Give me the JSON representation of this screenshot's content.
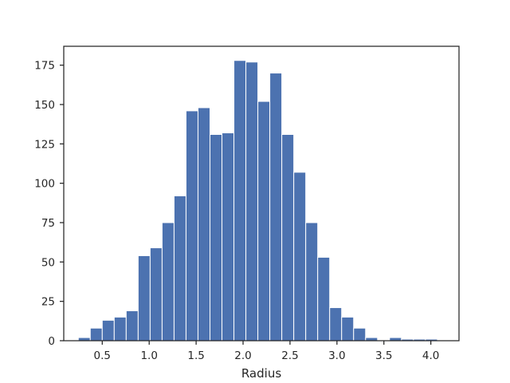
{
  "chart_data": {
    "type": "bar",
    "subtype": "histogram",
    "title": "",
    "xlabel": "Radius",
    "ylabel": "",
    "xlim": [
      0.09,
      4.3
    ],
    "ylim": [
      0,
      187
    ],
    "grid": false,
    "bar_color": "#4c72b0",
    "bar_edge_color": "#ffffff",
    "x_ticks": [
      {
        "value": 0.5,
        "label": "0.5"
      },
      {
        "value": 1.0,
        "label": "1.0"
      },
      {
        "value": 1.5,
        "label": "1.5"
      },
      {
        "value": 2.0,
        "label": "2.0"
      },
      {
        "value": 2.5,
        "label": "2.5"
      },
      {
        "value": 3.0,
        "label": "3.0"
      },
      {
        "value": 3.5,
        "label": "3.5"
      },
      {
        "value": 4.0,
        "label": "4.0"
      }
    ],
    "y_ticks": [
      {
        "value": 0,
        "label": "0"
      },
      {
        "value": 25,
        "label": "25"
      },
      {
        "value": 50,
        "label": "50"
      },
      {
        "value": 75,
        "label": "75"
      },
      {
        "value": 100,
        "label": "100"
      },
      {
        "value": 125,
        "label": "125"
      },
      {
        "value": 150,
        "label": "150"
      },
      {
        "value": 175,
        "label": "175"
      }
    ],
    "bin_start": 0.245,
    "bin_width": 0.1275,
    "values": [
      2,
      8,
      13,
      15,
      19,
      54,
      59,
      75,
      92,
      146,
      148,
      131,
      132,
      178,
      177,
      152,
      170,
      131,
      107,
      75,
      53,
      21,
      15,
      8,
      2,
      0,
      2,
      1,
      1,
      1
    ]
  }
}
